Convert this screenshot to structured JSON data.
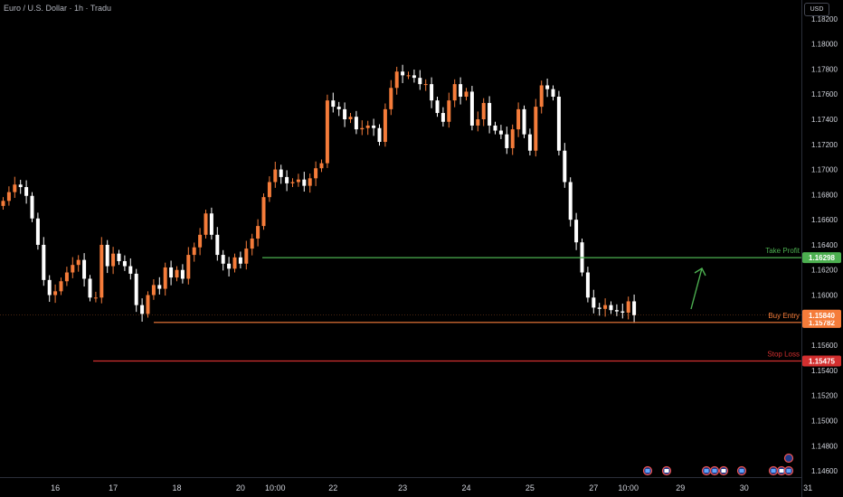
{
  "header": {
    "title": "Euro / U.S. Dollar · 1h · Tradu",
    "currency": "USD"
  },
  "colors": {
    "background": "#000000",
    "candle_up": "#f57c3a",
    "candle_down": "#ffffff",
    "take_profit": "#4caf50",
    "buy_entry": "#f57c3a",
    "stop_loss": "#d32f2f",
    "axis_text": "#d1d4dc"
  },
  "chart_data": {
    "type": "candlestick",
    "y_axis": {
      "min": 1.1455,
      "max": 1.1835,
      "ticks": [
        "1.18200",
        "1.18000",
        "1.17800",
        "1.17600",
        "1.17400",
        "1.17200",
        "1.17000",
        "1.16800",
        "1.16600",
        "1.16400",
        "1.16200",
        "1.16000",
        "1.15800",
        "1.15600",
        "1.15400",
        "1.15200",
        "1.15000",
        "1.14800",
        "1.14600"
      ]
    },
    "x_axis": {
      "ticks": [
        {
          "label": "16",
          "index": 9
        },
        {
          "label": "17",
          "index": 19
        },
        {
          "label": "18",
          "index": 30
        },
        {
          "label": "20",
          "index": 41
        },
        {
          "label": "10:00",
          "index": 47
        },
        {
          "label": "22",
          "index": 57
        },
        {
          "label": "23",
          "index": 69
        },
        {
          "label": "24",
          "index": 80
        },
        {
          "label": "25",
          "index": 91
        },
        {
          "label": "27",
          "index": 102
        },
        {
          "label": "10:00",
          "index": 108
        },
        {
          "label": "29",
          "index": 117
        },
        {
          "label": "30",
          "index": 128
        },
        {
          "label": "31",
          "index": 139
        }
      ]
    },
    "closes": [
      1.1675,
      1.1682,
      1.1688,
      1.1686,
      1.1679,
      1.1661,
      1.164,
      1.1612,
      1.16,
      1.1603,
      1.1611,
      1.1618,
      1.1624,
      1.1628,
      1.1613,
      1.1598,
      1.1598,
      1.164,
      1.1623,
      1.1633,
      1.1627,
      1.1623,
      1.1617,
      1.1592,
      1.1585,
      1.16,
      1.1608,
      1.1605,
      1.1622,
      1.1614,
      1.162,
      1.1613,
      1.1632,
      1.1638,
      1.1648,
      1.1665,
      1.1648,
      1.1632,
      1.1625,
      1.1621,
      1.163,
      1.1625,
      1.1637,
      1.1645,
      1.1655,
      1.1678,
      1.169,
      1.17,
      1.1694,
      1.1689,
      1.169,
      1.1692,
      1.1687,
      1.1693,
      1.1701,
      1.1705,
      1.1755,
      1.175,
      1.1748,
      1.174,
      1.1742,
      1.1732,
      1.1733,
      1.1735,
      1.1733,
      1.1722,
      1.1748,
      1.1765,
      1.1778,
      1.1775,
      1.1775,
      1.1773,
      1.1768,
      1.1768,
      1.1755,
      1.1745,
      1.1738,
      1.1755,
      1.1768,
      1.1758,
      1.1762,
      1.1735,
      1.174,
      1.1753,
      1.1735,
      1.1731,
      1.1728,
      1.1717,
      1.1732,
      1.1748,
      1.1728,
      1.1715,
      1.175,
      1.1767,
      1.1764,
      1.1758,
      1.1715,
      1.169,
      1.166,
      1.1642,
      1.1618,
      1.1598,
      1.159,
      1.1589,
      1.1592,
      1.1588,
      1.1587,
      1.1586,
      1.1595,
      1.1584
    ],
    "levels": [
      {
        "name": "Take Profit",
        "price": 1.16298,
        "label": "1.16298",
        "color": "#4caf50"
      },
      {
        "name": "Buy Entry",
        "price": 1.15782,
        "label": "1.15782",
        "color": "#f57c3a"
      },
      {
        "name": "Stop Loss",
        "price": 1.15475,
        "label": "1.15475",
        "color": "#d32f2f"
      }
    ],
    "current_price": {
      "price": 1.1584,
      "label": "1.15840"
    },
    "annotation": "upward-arrow-to-take-profit"
  }
}
